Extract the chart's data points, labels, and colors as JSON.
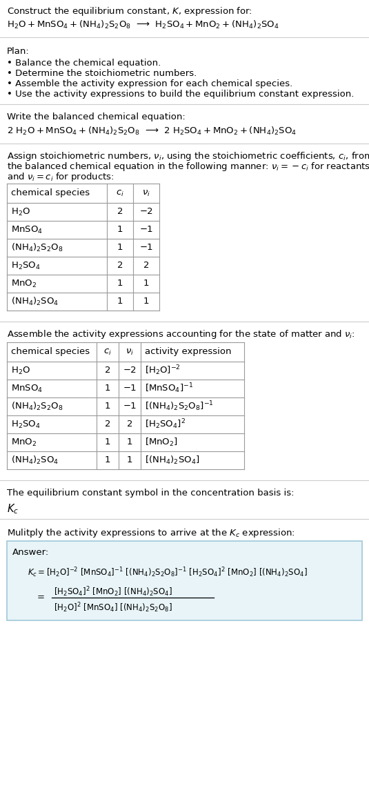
{
  "bg_color": "#ffffff",
  "text_color": "#000000",
  "plan_items": [
    "• Balance the chemical equation.",
    "• Determine the stoichiometric numbers.",
    "• Assemble the activity expression for each chemical species.",
    "• Use the activity expressions to build the equilibrium constant expression."
  ],
  "table1_rows": [
    [
      "H_2O",
      "2",
      "−2"
    ],
    [
      "MnSO_4",
      "1",
      "−1"
    ],
    [
      "(NH_4)_2S_2O_8",
      "1",
      "−1"
    ],
    [
      "H_2SO_4",
      "2",
      "2"
    ],
    [
      "MnO_2",
      "1",
      "1"
    ],
    [
      "(NH_4)_2SO_4",
      "1",
      "1"
    ]
  ],
  "table2_rows": [
    [
      "H_2O",
      "2",
      "−2",
      "[H_2O]^{-2}"
    ],
    [
      "MnSO_4",
      "1",
      "−1",
      "[MnSO_4]^{-1}"
    ],
    [
      "(NH_4)_2S_2O_8",
      "1",
      "−1",
      "[(NH_4)_2S_2O_8]^{-1}"
    ],
    [
      "H_2SO_4",
      "2",
      "2",
      "[H_2SO_4]^2"
    ],
    [
      "MnO_2",
      "1",
      "1",
      "[MnO_2]"
    ],
    [
      "(NH_4)_2SO_4",
      "1",
      "1",
      "[(NH_4)_2SO_4]"
    ]
  ],
  "answer_box_color": "#e8f4f8",
  "answer_box_border": "#a0c8d8",
  "line_color": "#cccccc",
  "table_line_color": "#999999"
}
